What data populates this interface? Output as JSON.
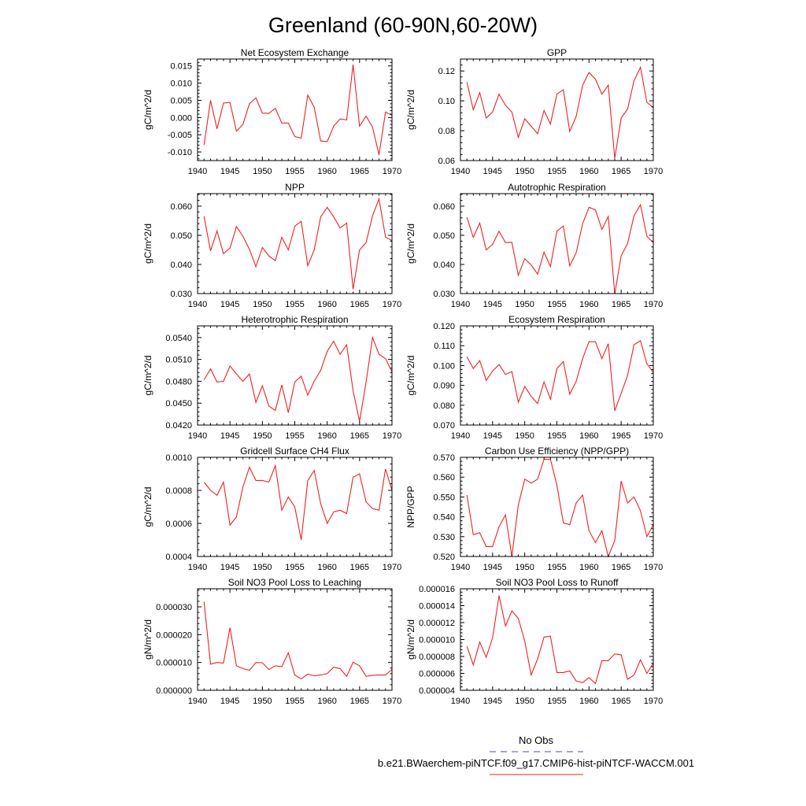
{
  "figure": {
    "title": "Greenland (60-90N,60-20W)",
    "legend": [
      {
        "label": "No Obs",
        "color": "#4a4aa6",
        "dash": "dashed"
      },
      {
        "label": "b.e21.BWaerchem-piNTCF.f09_g17.CMIP6-hist-piNTCF-WACCM.001",
        "color": "#ee2222",
        "dash": "solid"
      }
    ]
  },
  "chart_data": [
    {
      "type": "line",
      "title": "Net Ecosystem Exchange",
      "ylabel": "gC/m^2/d",
      "xlabel": "",
      "xlim": [
        1940,
        1970
      ],
      "xticks": [
        1940,
        1945,
        1950,
        1955,
        1960,
        1965,
        1970
      ],
      "ylim": [
        -0.0125,
        0.017
      ],
      "yticks": [
        -0.01,
        -0.005,
        0.0,
        0.005,
        0.01,
        0.015
      ],
      "ytick_labels": [
        "-0.010",
        "-0.005",
        "0.000",
        "0.005",
        "0.010",
        "0.015"
      ],
      "series": [
        {
          "color": "#ee2222",
          "x": [
            1941,
            1942,
            1943,
            1944,
            1945,
            1946,
            1947,
            1948,
            1949,
            1950,
            1951,
            1952,
            1953,
            1954,
            1955,
            1956,
            1957,
            1958,
            1959,
            1960,
            1961,
            1962,
            1963,
            1964,
            1965,
            1966,
            1967,
            1968,
            1969,
            1970
          ],
          "y": [
            -0.008,
            0.005,
            -0.0033,
            0.0042,
            0.0044,
            -0.004,
            -0.002,
            0.004,
            0.0057,
            0.0013,
            0.0012,
            0.0027,
            -0.0016,
            -0.0016,
            -0.0055,
            -0.006,
            0.0065,
            0.003,
            -0.0068,
            -0.007,
            -0.0025,
            -0.0004,
            -0.0007,
            0.0154,
            -0.0025,
            0.0004,
            -0.0028,
            -0.0108,
            0.0016,
            0.0006
          ]
        }
      ]
    },
    {
      "type": "line",
      "title": "GPP",
      "ylabel": "gC/m^2/d",
      "xlabel": "",
      "xlim": [
        1940,
        1970
      ],
      "xticks": [
        1940,
        1945,
        1950,
        1955,
        1960,
        1965,
        1970
      ],
      "ylim": [
        0.06,
        0.128
      ],
      "yticks": [
        0.06,
        0.08,
        0.1,
        0.12
      ],
      "ytick_labels": [
        "0.06",
        "0.08",
        "0.10",
        "0.12"
      ],
      "series": [
        {
          "color": "#ee2222",
          "x": [
            1941,
            1942,
            1943,
            1944,
            1945,
            1946,
            1947,
            1948,
            1949,
            1950,
            1951,
            1952,
            1953,
            1954,
            1955,
            1956,
            1957,
            1958,
            1959,
            1960,
            1961,
            1962,
            1963,
            1964,
            1965,
            1966,
            1967,
            1968,
            1969,
            1970
          ],
          "y": [
            0.1125,
            0.094,
            0.1055,
            0.0885,
            0.0925,
            0.1045,
            0.097,
            0.0925,
            0.0755,
            0.088,
            0.083,
            0.078,
            0.0935,
            0.0845,
            0.1045,
            0.1075,
            0.0795,
            0.0895,
            0.1105,
            0.119,
            0.1145,
            0.1045,
            0.1105,
            0.0615,
            0.0885,
            0.0945,
            0.1135,
            0.1225,
            0.099,
            0.0955
          ]
        }
      ]
    },
    {
      "type": "line",
      "title": "NPP",
      "ylabel": "gC/m^2/d",
      "xlabel": "",
      "xlim": [
        1940,
        1970
      ],
      "xticks": [
        1940,
        1945,
        1950,
        1955,
        1960,
        1965,
        1970
      ],
      "ylim": [
        0.03,
        0.0643
      ],
      "yticks": [
        0.03,
        0.04,
        0.05,
        0.06
      ],
      "ytick_labels": [
        "0.030",
        "0.040",
        "0.050",
        "0.060"
      ],
      "series": [
        {
          "color": "#ee2222",
          "x": [
            1941,
            1942,
            1943,
            1944,
            1945,
            1946,
            1947,
            1948,
            1949,
            1950,
            1951,
            1952,
            1953,
            1954,
            1955,
            1956,
            1957,
            1958,
            1959,
            1960,
            1961,
            1962,
            1963,
            1964,
            1965,
            1966,
            1967,
            1968,
            1969,
            1970
          ],
          "y": [
            0.0565,
            0.0447,
            0.0515,
            0.0437,
            0.0456,
            0.053,
            0.0497,
            0.0452,
            0.0392,
            0.0458,
            0.0429,
            0.0413,
            0.0493,
            0.045,
            0.0531,
            0.0548,
            0.0396,
            0.045,
            0.0563,
            0.0596,
            0.0563,
            0.0525,
            0.0542,
            0.0315,
            0.045,
            0.0475,
            0.0567,
            0.0625,
            0.0494,
            0.0482
          ]
        }
      ]
    },
    {
      "type": "line",
      "title": "Autotrophic Respiration",
      "ylabel": "gC/m^2/d",
      "xlabel": "",
      "xlim": [
        1940,
        1970
      ],
      "xticks": [
        1940,
        1945,
        1950,
        1955,
        1960,
        1965,
        1970
      ],
      "ylim": [
        0.03,
        0.0643
      ],
      "yticks": [
        0.03,
        0.04,
        0.05,
        0.06
      ],
      "ytick_labels": [
        "0.030",
        "0.040",
        "0.050",
        "0.060"
      ],
      "series": [
        {
          "color": "#ee2222",
          "x": [
            1941,
            1942,
            1943,
            1944,
            1945,
            1946,
            1947,
            1948,
            1949,
            1950,
            1951,
            1952,
            1953,
            1954,
            1955,
            1956,
            1957,
            1958,
            1959,
            1960,
            1961,
            1962,
            1963,
            1964,
            1965,
            1966,
            1967,
            1968,
            1969,
            1970
          ],
          "y": [
            0.0562,
            0.0493,
            0.0542,
            0.045,
            0.0469,
            0.0514,
            0.0475,
            0.0476,
            0.0363,
            0.042,
            0.0398,
            0.0367,
            0.0442,
            0.0393,
            0.0514,
            0.0532,
            0.0395,
            0.044,
            0.054,
            0.0596,
            0.0587,
            0.052,
            0.0565,
            0.0299,
            0.043,
            0.0472,
            0.0567,
            0.0605,
            0.0497,
            0.0475
          ]
        }
      ]
    },
    {
      "type": "line",
      "title": "Heterotrophic Respiration",
      "ylabel": "gC/m^2/d",
      "xlabel": "",
      "xlim": [
        1940,
        1970
      ],
      "xticks": [
        1940,
        1945,
        1950,
        1955,
        1960,
        1965,
        1970
      ],
      "ylim": [
        0.042,
        0.0556
      ],
      "yticks": [
        0.042,
        0.045,
        0.048,
        0.051,
        0.054
      ],
      "ytick_labels": [
        "0.0420",
        "0.0450",
        "0.0480",
        "0.0510",
        "0.0540"
      ],
      "series": [
        {
          "color": "#ee2222",
          "x": [
            1941,
            1942,
            1943,
            1944,
            1945,
            1946,
            1947,
            1948,
            1949,
            1950,
            1951,
            1952,
            1953,
            1954,
            1955,
            1956,
            1957,
            1958,
            1959,
            1960,
            1961,
            1962,
            1963,
            1964,
            1965,
            1966,
            1967,
            1968,
            1969,
            1970
          ],
          "y": [
            0.0482,
            0.0497,
            0.0479,
            0.048,
            0.0501,
            0.049,
            0.048,
            0.049,
            0.0451,
            0.0474,
            0.0446,
            0.044,
            0.0475,
            0.0437,
            0.0479,
            0.0487,
            0.0461,
            0.048,
            0.0495,
            0.0521,
            0.0535,
            0.0517,
            0.053,
            0.0467,
            0.0425,
            0.0479,
            0.054,
            0.0517,
            0.0511,
            0.0493
          ]
        }
      ]
    },
    {
      "type": "line",
      "title": "Ecosystem Respiration",
      "ylabel": "gC/m^2/d",
      "xlabel": "",
      "xlim": [
        1940,
        1970
      ],
      "xticks": [
        1940,
        1945,
        1950,
        1955,
        1960,
        1965,
        1970
      ],
      "ylim": [
        0.07,
        0.12
      ],
      "yticks": [
        0.07,
        0.08,
        0.09,
        0.1,
        0.11,
        0.12
      ],
      "ytick_labels": [
        "0.070",
        "0.080",
        "0.090",
        "0.100",
        "0.110",
        "0.120"
      ],
      "series": [
        {
          "color": "#ee2222",
          "x": [
            1941,
            1942,
            1943,
            1944,
            1945,
            1946,
            1947,
            1948,
            1949,
            1950,
            1951,
            1952,
            1953,
            1954,
            1955,
            1956,
            1957,
            1958,
            1959,
            1960,
            1961,
            1962,
            1963,
            1964,
            1965,
            1966,
            1967,
            1968,
            1969,
            1970
          ],
          "y": [
            0.1045,
            0.0985,
            0.1025,
            0.0925,
            0.0972,
            0.1005,
            0.0955,
            0.097,
            0.0815,
            0.0895,
            0.0845,
            0.0808,
            0.0918,
            0.083,
            0.0985,
            0.102,
            0.0855,
            0.092,
            0.1035,
            0.112,
            0.112,
            0.1035,
            0.111,
            0.0772,
            0.086,
            0.095,
            0.1105,
            0.1125,
            0.101,
            0.0965
          ]
        }
      ]
    },
    {
      "type": "line",
      "title": "Gridcell Surface CH4 Flux",
      "ylabel": "gC/m^2/d",
      "xlabel": "",
      "xlim": [
        1940,
        1970
      ],
      "xticks": [
        1940,
        1945,
        1950,
        1955,
        1960,
        1965,
        1970
      ],
      "ylim": [
        0.0004,
        0.001
      ],
      "yticks": [
        0.0004,
        0.0006,
        0.0008,
        0.001
      ],
      "ytick_labels": [
        "0.0004",
        "0.0006",
        "0.0008",
        "0.0010"
      ],
      "series": [
        {
          "color": "#ee2222",
          "x": [
            1941,
            1942,
            1943,
            1944,
            1945,
            1946,
            1947,
            1948,
            1949,
            1950,
            1951,
            1952,
            1953,
            1954,
            1955,
            1956,
            1957,
            1958,
            1959,
            1960,
            1961,
            1962,
            1963,
            1964,
            1965,
            1966,
            1967,
            1968,
            1969,
            1970
          ],
          "y": [
            0.00085,
            0.0008,
            0.00077,
            0.00085,
            0.00059,
            0.00064,
            0.00082,
            0.00094,
            0.00086,
            0.00086,
            0.00085,
            0.00095,
            0.00068,
            0.00076,
            0.0007,
            0.0005,
            0.00086,
            0.00092,
            0.00072,
            0.0006,
            0.00067,
            0.00068,
            0.00066,
            0.00088,
            0.0009,
            0.00073,
            0.00069,
            0.00068,
            0.00093,
            0.0008
          ]
        }
      ]
    },
    {
      "type": "line",
      "title": "Carbon Use Efficiency (NPP/GPP)",
      "ylabel": "NPP/GPP",
      "xlabel": "",
      "xlim": [
        1940,
        1970
      ],
      "xticks": [
        1940,
        1945,
        1950,
        1955,
        1960,
        1965,
        1970
      ],
      "ylim": [
        0.52,
        0.57
      ],
      "yticks": [
        0.52,
        0.53,
        0.54,
        0.55,
        0.56,
        0.57
      ],
      "ytick_labels": [
        "0.520",
        "0.530",
        "0.540",
        "0.550",
        "0.560",
        "0.570"
      ],
      "series": [
        {
          "color": "#ee2222",
          "x": [
            1941,
            1942,
            1943,
            1944,
            1945,
            1946,
            1947,
            1948,
            1949,
            1950,
            1951,
            1952,
            1953,
            1954,
            1955,
            1956,
            1957,
            1958,
            1959,
            1960,
            1961,
            1962,
            1963,
            1964,
            1965,
            1966,
            1967,
            1968,
            1969,
            1970
          ],
          "y": [
            0.551,
            0.531,
            0.532,
            0.525,
            0.525,
            0.535,
            0.541,
            0.52,
            0.546,
            0.559,
            0.557,
            0.559,
            0.569,
            0.569,
            0.556,
            0.537,
            0.536,
            0.547,
            0.551,
            0.533,
            0.527,
            0.533,
            0.52,
            0.528,
            0.558,
            0.547,
            0.55,
            0.543,
            0.53,
            0.536
          ]
        }
      ]
    },
    {
      "type": "line",
      "title": "Soil NO3 Pool Loss to Leaching",
      "ylabel": "gN/m^2/d",
      "xlabel": "",
      "xlim": [
        1940,
        1970
      ],
      "xticks": [
        1940,
        1945,
        1950,
        1955,
        1960,
        1965,
        1970
      ],
      "ylim": [
        0,
        3.65e-05
      ],
      "yticks": [
        0,
        1e-05,
        2e-05,
        3e-05
      ],
      "ytick_labels": [
        "0.000000",
        "0.000010",
        "0.000020",
        "0.000030"
      ],
      "series": [
        {
          "color": "#ee2222",
          "x": [
            1941,
            1942,
            1943,
            1944,
            1945,
            1946,
            1947,
            1948,
            1949,
            1950,
            1951,
            1952,
            1953,
            1954,
            1955,
            1956,
            1957,
            1958,
            1959,
            1960,
            1961,
            1962,
            1963,
            1964,
            1965,
            1966,
            1967,
            1968,
            1969,
            1970
          ],
          "y": [
            3.18e-05,
            9.4e-06,
            1e-05,
            9.8e-06,
            2.25e-05,
            8.8e-06,
            7.8e-06,
            7.2e-06,
            1e-05,
            9.9e-06,
            7.5e-06,
            8.8e-06,
            8.5e-06,
            1.35e-05,
            5.5e-06,
            4.1e-06,
            5.8e-06,
            5.2e-06,
            5.5e-06,
            6e-06,
            8.3e-06,
            7.8e-06,
            5e-06,
            1.01e-05,
            8.8e-06,
            5e-06,
            5.4e-06,
            5.5e-06,
            5.5e-06,
            7.5e-06
          ]
        }
      ]
    },
    {
      "type": "line",
      "title": "Soil NO3 Pool Loss to Runoff",
      "ylabel": "gN/m^2/d",
      "xlabel": "",
      "xlim": [
        1940,
        1970
      ],
      "xticks": [
        1940,
        1945,
        1950,
        1955,
        1960,
        1965,
        1970
      ],
      "ylim": [
        4e-06,
        1.6e-05
      ],
      "yticks": [
        4e-06,
        6e-06,
        8e-06,
        1e-05,
        1.2e-05,
        1.4e-05,
        1.6e-05
      ],
      "ytick_labels": [
        "0.000004",
        "0.000006",
        "0.000008",
        "0.000010",
        "0.000012",
        "0.000014",
        "0.000016"
      ],
      "series": [
        {
          "color": "#ee2222",
          "x": [
            1941,
            1942,
            1943,
            1944,
            1945,
            1946,
            1947,
            1948,
            1949,
            1950,
            1951,
            1952,
            1953,
            1954,
            1955,
            1956,
            1957,
            1958,
            1959,
            1960,
            1961,
            1962,
            1963,
            1964,
            1965,
            1966,
            1967,
            1968,
            1969,
            1970
          ],
          "y": [
            9.2e-06,
            7e-06,
            9.7e-06,
            7.9e-06,
            1.02e-05,
            1.52e-05,
            1.16e-05,
            1.34e-05,
            1.25e-05,
            9.8e-06,
            5.8e-06,
            7.7e-06,
            1.03e-05,
            1.04e-05,
            6.1e-06,
            6.1e-06,
            6.3e-06,
            5.1e-06,
            4.9e-06,
            5.5e-06,
            4.8e-06,
            7.5e-06,
            7.5e-06,
            8.3e-06,
            8.2e-06,
            5.3e-06,
            5.8e-06,
            7.6e-06,
            6e-06,
            7.2e-06
          ]
        }
      ]
    }
  ]
}
